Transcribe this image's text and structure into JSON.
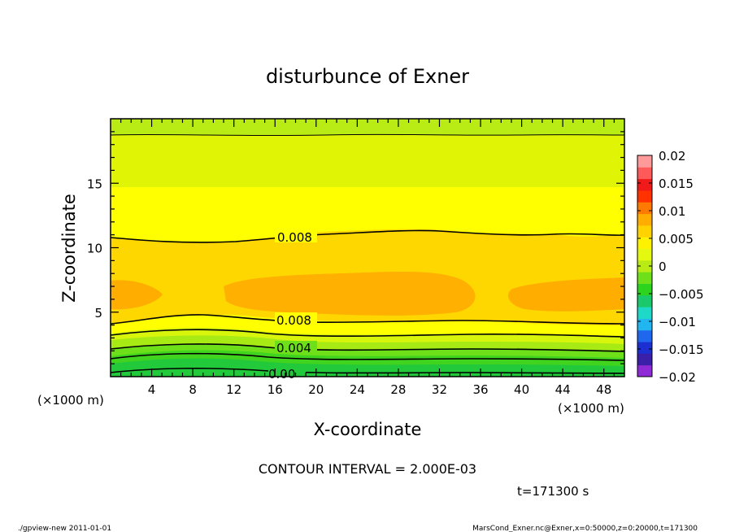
{
  "chart_data": {
    "type": "contour",
    "title": "disturbunce of Exner",
    "xlabel": "X-coordinate",
    "ylabel": "Z-coordinate",
    "x_unit": "(×1000 m)",
    "z_unit": "(×1000 m)",
    "xlim": [
      0,
      50
    ],
    "zlim": [
      0,
      20
    ],
    "x_ticks": [
      "4",
      "8",
      "12",
      "16",
      "20",
      "24",
      "28",
      "32",
      "36",
      "40",
      "44",
      "48"
    ],
    "z_ticks": [
      "5",
      "10",
      "15"
    ],
    "contour_interval": "CONTOUR INTERVAL = 2.000E-03",
    "time_label": "t=171300 s",
    "contour_labels": [
      "0.008",
      "0.008",
      "0.004",
      "0.00"
    ],
    "colorbar": {
      "levels": [
        "0.02",
        "0.015",
        "0.01",
        "0.005",
        "0",
        "−0.005",
        "−0.01",
        "−0.015",
        "−0.02"
      ],
      "colors": [
        "#8e2ad6",
        "#3a1fa8",
        "#1c2fd0",
        "#1f68ee",
        "#22b6f0",
        "#1fd9c8",
        "#19c96b",
        "#2cd41e",
        "#6ee01a",
        "#b9ec14",
        "#e4f810",
        "#fff200",
        "#ffd200",
        "#ffad00",
        "#ff7a00",
        "#ff3200",
        "#f11a1a",
        "#ff5a5a",
        "#ff9a9a"
      ]
    }
  },
  "footer": {
    "left": "./gpview-new  2011-01-01",
    "right": "MarsCond_Exner.nc@Exner,x=0:50000,z=0:20000,t=171300"
  }
}
